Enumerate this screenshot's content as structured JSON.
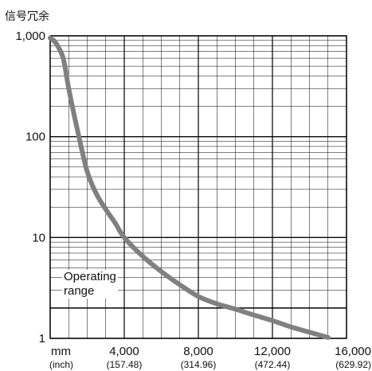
{
  "chart_data": {
    "type": "line",
    "title": "信号冗余",
    "xlabel": "mm",
    "xlabel_secondary": "(inch)",
    "x_ticks": [
      {
        "value": 4000,
        "label": "4,000",
        "sublabel": "(157.48)"
      },
      {
        "value": 8000,
        "label": "8,000",
        "sublabel": "(314.96)"
      },
      {
        "value": 12000,
        "label": "12,000",
        "sublabel": "(472.44)"
      },
      {
        "value": 16000,
        "label": "16,000",
        "sublabel": "(629.92)"
      }
    ],
    "xlim": [
      0,
      16000
    ],
    "y_scale": "log",
    "ylim": [
      1,
      1000
    ],
    "y_ticks": [
      {
        "value": 1,
        "label": "1"
      },
      {
        "value": 10,
        "label": "10"
      },
      {
        "value": 100,
        "label": "100"
      },
      {
        "value": 1000,
        "label": "1,000"
      }
    ],
    "grid": true,
    "annotation": {
      "lines": [
        "Operating",
        "range"
      ]
    },
    "threshold": 2,
    "colors": {
      "curve": "#808080",
      "grid": "#000000"
    },
    "series": [
      {
        "x": [
          0,
          300,
          700,
          1000,
          1500,
          2000,
          2500,
          3000,
          3500,
          4000,
          5000,
          6000,
          7000,
          8000,
          9000,
          10000,
          11000,
          12000,
          13000,
          14000,
          15000
        ],
        "values": [
          950,
          850,
          600,
          300,
          110,
          45,
          27,
          19,
          14,
          10,
          6.5,
          4.6,
          3.4,
          2.6,
          2.2,
          1.95,
          1.7,
          1.5,
          1.3,
          1.15,
          1.02
        ]
      }
    ]
  }
}
